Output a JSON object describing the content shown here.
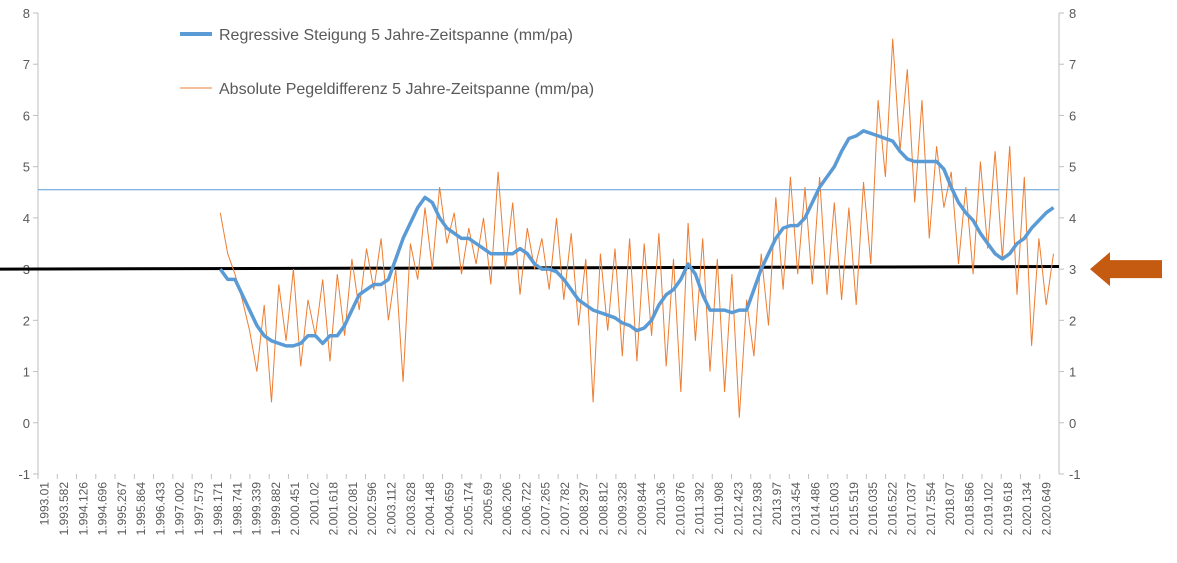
{
  "chart_data": {
    "type": "line",
    "y_left": {
      "min": -1,
      "max": 8,
      "ticks": [
        "-1",
        "0",
        "1",
        "2",
        "3",
        "4",
        "5",
        "6",
        "7",
        "8"
      ]
    },
    "y_right": {
      "min": -1,
      "max": 8,
      "ticks": [
        "-1",
        "0",
        "1",
        "2",
        "3",
        "4",
        "5",
        "6",
        "7",
        "8"
      ]
    },
    "x_ticks": [
      "1993.01",
      "1.993.582",
      "1.994.126",
      "1.994.696",
      "1.995.267",
      "1.995.864",
      "1.996.433",
      "1.997.002",
      "1.997.573",
      "1.998.171",
      "1.998.741",
      "1.999.339",
      "1.999.882",
      "2.000.451",
      "2001.02",
      "2.001.618",
      "2.002.081",
      "2.002.596",
      "2.003.112",
      "2.003.628",
      "2.004.148",
      "2.004.659",
      "2.005.174",
      "2005.69",
      "2.006.206",
      "2.006.722",
      "2.007.265",
      "2.007.782",
      "2.008.297",
      "2.008.812",
      "2.009.328",
      "2.009.844",
      "2010.36",
      "2.010.876",
      "2.011.392",
      "2.011.908",
      "2.012.423",
      "2.012.938",
      "2013.97",
      "2.013.454",
      "2.014.486",
      "2.015.003",
      "2.015.519",
      "2.016.035",
      "2.016.522",
      "2.017.037",
      "2.017.554",
      "2018.07",
      "2.018.586",
      "2.019.102",
      "2.019.618",
      "2.020.134",
      "2.020.649"
    ],
    "grid": false,
    "legend_position": "top-center",
    "series": [
      {
        "name": "Regressive Steigung 5 Jahre-Zeitspanne (mm/pa)",
        "color": "#5b9bd5",
        "x": [
          1998.0,
          1998.2,
          1998.4,
          1998.6,
          1998.8,
          1999.0,
          1999.2,
          1999.4,
          1999.6,
          1999.8,
          2000.0,
          2000.2,
          2000.4,
          2000.6,
          2000.8,
          2001.0,
          2001.2,
          2001.4,
          2001.6,
          2001.8,
          2002.0,
          2002.2,
          2002.4,
          2002.6,
          2002.8,
          2003.0,
          2003.2,
          2003.4,
          2003.6,
          2003.8,
          2004.0,
          2004.2,
          2004.4,
          2004.6,
          2004.8,
          2005.0,
          2005.2,
          2005.4,
          2005.6,
          2005.8,
          2006.0,
          2006.2,
          2006.4,
          2006.6,
          2006.8,
          2007.0,
          2007.2,
          2007.4,
          2007.6,
          2007.8,
          2008.0,
          2008.2,
          2008.4,
          2008.6,
          2008.8,
          2009.0,
          2009.2,
          2009.4,
          2009.6,
          2009.8,
          2010.0,
          2010.2,
          2010.4,
          2010.6,
          2010.8,
          2011.0,
          2011.2,
          2011.4,
          2011.6,
          2011.8,
          2012.0,
          2012.2,
          2012.4,
          2012.6,
          2012.8,
          2013.0,
          2013.2,
          2013.4,
          2013.6,
          2013.8,
          2014.0,
          2014.2,
          2014.4,
          2014.6,
          2014.8,
          2015.0,
          2015.2,
          2015.4,
          2015.6,
          2015.8,
          2016.0,
          2016.2,
          2016.4,
          2016.6,
          2016.8,
          2017.0,
          2017.2,
          2017.4,
          2017.6,
          2017.8,
          2018.0,
          2018.2,
          2018.4,
          2018.6,
          2018.8,
          2019.0,
          2019.2,
          2019.4,
          2019.6,
          2019.8,
          2020.0,
          2020.2,
          2020.4,
          2020.6,
          2020.8
        ],
        "y": [
          3.0,
          2.8,
          2.8,
          2.5,
          2.2,
          1.9,
          1.7,
          1.6,
          1.55,
          1.5,
          1.5,
          1.55,
          1.7,
          1.7,
          1.55,
          1.7,
          1.7,
          1.9,
          2.2,
          2.5,
          2.6,
          2.7,
          2.7,
          2.8,
          3.2,
          3.6,
          3.9,
          4.2,
          4.4,
          4.3,
          4.0,
          3.8,
          3.7,
          3.6,
          3.6,
          3.5,
          3.4,
          3.3,
          3.3,
          3.3,
          3.3,
          3.4,
          3.3,
          3.1,
          3.0,
          3.0,
          2.95,
          2.8,
          2.6,
          2.4,
          2.3,
          2.2,
          2.15,
          2.1,
          2.05,
          1.95,
          1.9,
          1.8,
          1.85,
          2.0,
          2.3,
          2.5,
          2.6,
          2.8,
          3.1,
          2.9,
          2.5,
          2.2,
          2.2,
          2.2,
          2.15,
          2.2,
          2.2,
          2.6,
          3.0,
          3.3,
          3.6,
          3.8,
          3.85,
          3.85,
          4.0,
          4.3,
          4.6,
          4.8,
          5.0,
          5.3,
          5.55,
          5.6,
          5.7,
          5.65,
          5.6,
          5.55,
          5.5,
          5.3,
          5.15,
          5.1,
          5.1,
          5.1,
          5.1,
          4.95,
          4.6,
          4.3,
          4.1,
          3.95,
          3.7,
          3.5,
          3.3,
          3.2,
          3.3,
          3.5,
          3.6,
          3.8,
          3.95,
          4.1,
          4.2
        ]
      },
      {
        "name": "Absolute Pegeldifferenz 5 Jahre-Zeitspanne (mm/pa)",
        "color": "#ed7d31",
        "x_start": 1998.0,
        "x_step": 0.2,
        "y": [
          4.1,
          3.3,
          2.9,
          2.4,
          1.8,
          1.0,
          2.3,
          0.4,
          2.7,
          1.6,
          3.0,
          1.1,
          2.4,
          1.7,
          2.8,
          1.2,
          2.9,
          1.7,
          3.2,
          2.2,
          3.4,
          2.6,
          3.6,
          2.0,
          3.0,
          0.8,
          3.5,
          2.8,
          4.2,
          3.0,
          4.6,
          3.5,
          4.1,
          2.9,
          3.8,
          3.1,
          4.0,
          2.7,
          4.9,
          3.0,
          4.3,
          2.5,
          3.8,
          3.0,
          3.6,
          2.6,
          4.0,
          2.4,
          3.7,
          1.9,
          3.2,
          0.4,
          3.3,
          1.8,
          3.4,
          1.3,
          3.6,
          1.2,
          3.5,
          1.7,
          3.7,
          1.1,
          3.2,
          0.6,
          3.9,
          1.6,
          3.6,
          1.0,
          3.2,
          0.6,
          2.9,
          0.1,
          2.4,
          1.3,
          3.3,
          1.9,
          4.4,
          2.6,
          4.8,
          2.9,
          4.6,
          2.7,
          4.8,
          2.5,
          4.3,
          2.4,
          4.2,
          2.3,
          4.7,
          3.1,
          6.3,
          4.8,
          7.5,
          5.3,
          6.9,
          4.3,
          6.3,
          3.6,
          5.4,
          4.2,
          4.9,
          3.1,
          4.6,
          2.9,
          5.1,
          3.4,
          5.3,
          3.2,
          5.4,
          2.5,
          4.8,
          1.5,
          3.6,
          2.3,
          3.3
        ]
      }
    ],
    "reference_lines": [
      {
        "kind": "threshold",
        "color": "#000000",
        "y_start": 3.0,
        "y_end": 3.05
      },
      {
        "kind": "level",
        "color": "#5b9bd5",
        "y": 4.55
      }
    ],
    "arrow": {
      "color": "#c55a11",
      "y": 3.0,
      "direction": "left"
    }
  }
}
